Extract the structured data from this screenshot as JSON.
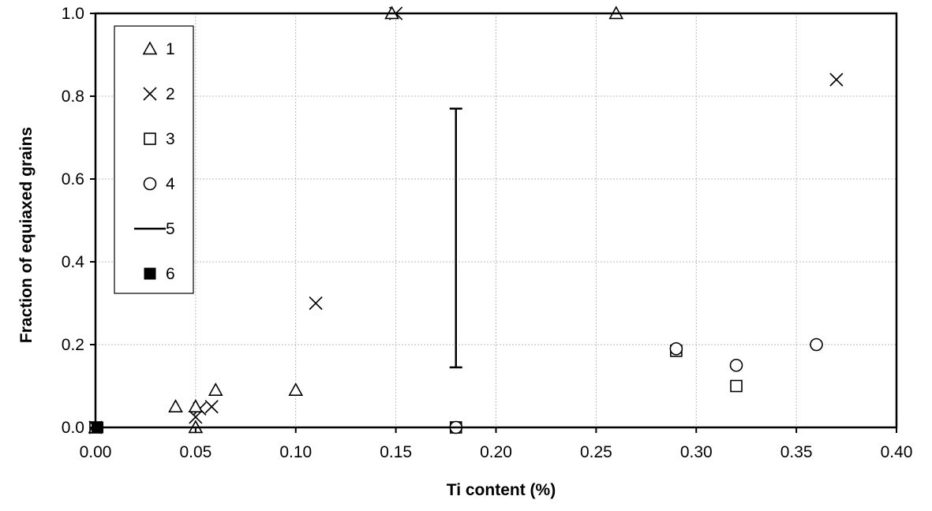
{
  "chart_data": {
    "type": "scatter",
    "title": "",
    "xlabel": "Ti content (%)",
    "ylabel": "Fraction of equiaxed grains",
    "xlim": [
      0,
      0.4
    ],
    "ylim": [
      0,
      1.0
    ],
    "x_ticks": [
      "0.00",
      "0.05",
      "0.10",
      "0.15",
      "0.20",
      "0.25",
      "0.30",
      "0.35",
      "0.40"
    ],
    "y_ticks": [
      "0.0",
      "0.2",
      "0.4",
      "0.6",
      "0.8",
      "1.0"
    ],
    "grid": true,
    "legend_position": "top-left",
    "series": [
      {
        "name": "1",
        "marker": "triangle",
        "points": [
          [
            0.0,
            0.0
          ],
          [
            0.04,
            0.05
          ],
          [
            0.05,
            0.05
          ],
          [
            0.05,
            0.0
          ],
          [
            0.06,
            0.09
          ],
          [
            0.1,
            0.09
          ],
          [
            0.148,
            1.0
          ],
          [
            0.26,
            1.0
          ]
        ]
      },
      {
        "name": "2",
        "marker": "x",
        "points": [
          [
            0.0,
            0.0
          ],
          [
            0.05,
            0.025
          ],
          [
            0.052,
            0.045
          ],
          [
            0.058,
            0.05
          ],
          [
            0.11,
            0.3
          ],
          [
            0.15,
            1.0
          ],
          [
            0.37,
            0.84
          ]
        ]
      },
      {
        "name": "3",
        "marker": "square",
        "points": [
          [
            0.0,
            0.0
          ],
          [
            0.18,
            0.0
          ],
          [
            0.29,
            0.185
          ],
          [
            0.32,
            0.1
          ]
        ]
      },
      {
        "name": "4",
        "marker": "circle",
        "points": [
          [
            0.18,
            0.0
          ],
          [
            0.29,
            0.19
          ],
          [
            0.32,
            0.15
          ],
          [
            0.36,
            0.2
          ]
        ]
      },
      {
        "name": "5",
        "marker": "range",
        "ranges": [
          {
            "x": 0.18,
            "low": 0.145,
            "high": 0.77
          }
        ]
      },
      {
        "name": "6",
        "marker": "filled-square",
        "points": [
          [
            0.001,
            0.0
          ]
        ]
      }
    ]
  }
}
